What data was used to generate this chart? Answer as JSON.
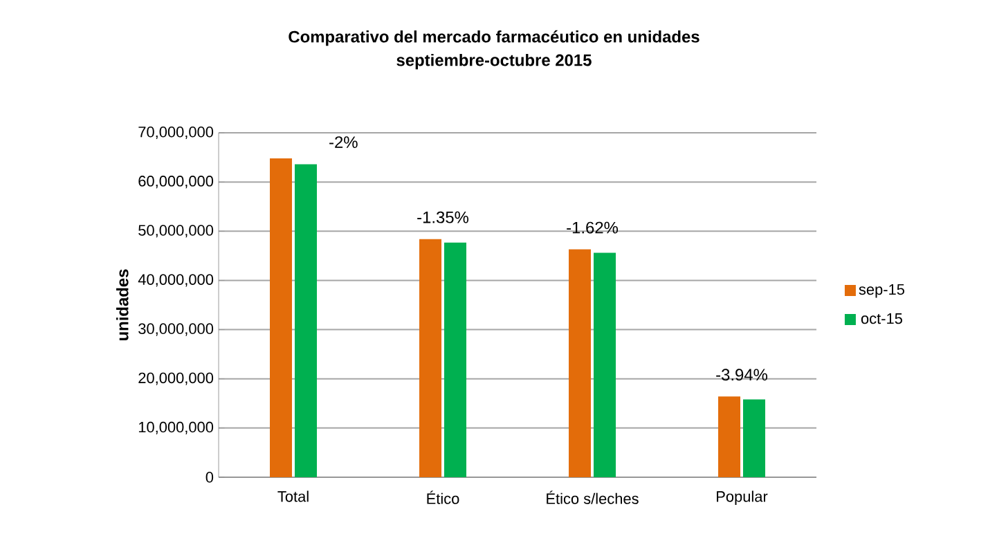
{
  "chart_data": {
    "type": "bar",
    "title": "Comparativo del mercado farmacéutico  en unidades",
    "subtitle": "septiembre-octubre  2015",
    "ylabel": "unidades",
    "categories": [
      "Total",
      "Ético",
      "Ético s/leches",
      "Popular"
    ],
    "series": [
      {
        "name": "sep-15",
        "color": "#e36c0a",
        "values": [
          64800000,
          48400000,
          46300000,
          16400000
        ]
      },
      {
        "name": "oct-15",
        "color": "#00b050",
        "values": [
          63600000,
          47700000,
          45600000,
          15800000
        ]
      }
    ],
    "ylim": [
      0,
      70000000
    ],
    "yticks": [
      {
        "value": 0,
        "label": "0"
      },
      {
        "value": 10000000,
        "label": "10,000,000"
      },
      {
        "value": 20000000,
        "label": "20,000,000"
      },
      {
        "value": 30000000,
        "label": "30,000,000"
      },
      {
        "value": 40000000,
        "label": "40,000,000"
      },
      {
        "value": 50000000,
        "label": "50,000,000"
      },
      {
        "value": 60000000,
        "label": "60,000,000"
      },
      {
        "value": 70000000,
        "label": "70,000,000"
      }
    ],
    "annotations": [
      {
        "text": "-2%",
        "x": "Total",
        "y": 64800000
      },
      {
        "text": "-1.35%",
        "x": "Ético",
        "y": 48400000
      },
      {
        "text": "-1.62%",
        "x": "Ético s/leches",
        "y": 46300000
      },
      {
        "text": "-3.94%",
        "x": "Popular",
        "y": 16400000
      }
    ],
    "grid": "y",
    "legend": "right"
  }
}
